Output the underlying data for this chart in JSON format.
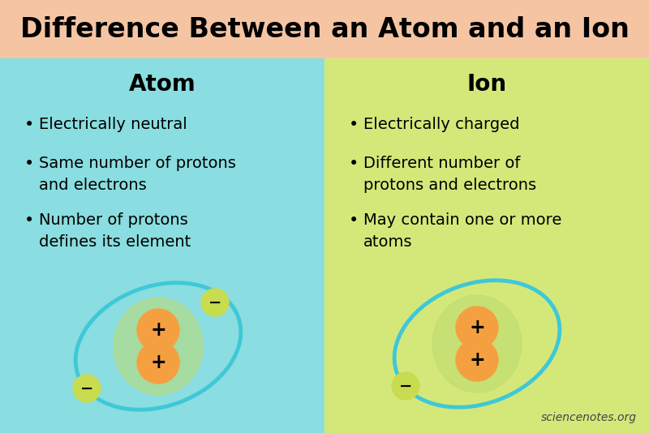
{
  "title": "Difference Between an Atom and an Ion",
  "title_bg": "#F5C5A3",
  "left_bg": "#8ADDE0",
  "right_bg": "#D4E87A",
  "left_header": "Atom",
  "right_header": "Ion",
  "atom_bullets": [
    "Electrically neutral",
    "Same number of protons\nand electrons",
    "Number of protons\ndefines its element"
  ],
  "ion_bullets": [
    "Electrically charged",
    "Different number of\nprotons and electrons",
    "May contain one or more\natoms"
  ],
  "nucleus_inner_color": "#BEDA6E",
  "nucleus_outer_color": "#F5A040",
  "orbit_color": "#3EC8D8",
  "electron_color": "#C8DC50",
  "watermark": "sciencenotes.org",
  "header_fontsize": 20,
  "title_fontsize": 24,
  "bullet_fontsize": 14
}
